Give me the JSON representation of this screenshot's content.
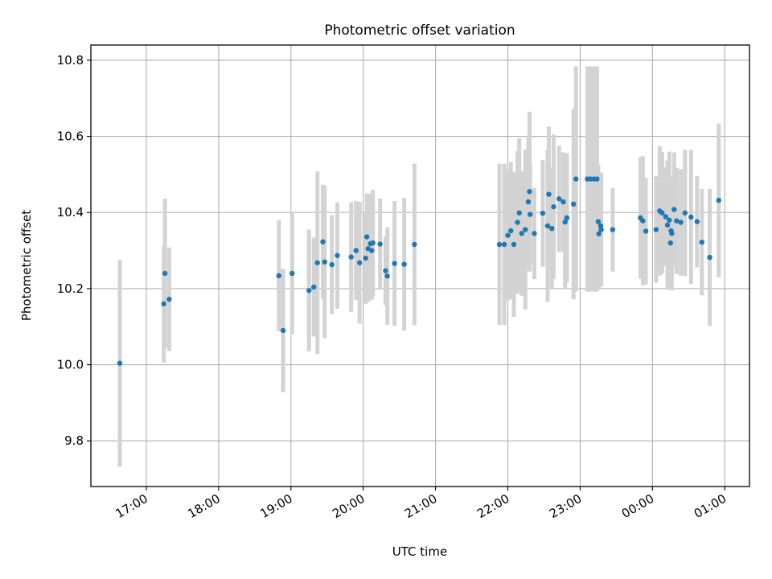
{
  "chart_data": {
    "type": "scatter",
    "title": "Photometric offset variation",
    "xlabel": "UTC time",
    "ylabel": "Photometric offset",
    "x_unit": "hours (UTC); 24 = 00:00, 25 = 01:00",
    "xlim": [
      16.2333,
      25.3417
    ],
    "ylim": [
      9.68,
      10.84
    ],
    "x_ticks": [
      17,
      18,
      19,
      20,
      21,
      22,
      23,
      24,
      25
    ],
    "x_tick_labels": [
      "17:00",
      "18:00",
      "19:00",
      "20:00",
      "21:00",
      "22:00",
      "23:00",
      "00:00",
      "01:00"
    ],
    "y_ticks": [
      9.8,
      10.0,
      10.2,
      10.4,
      10.6,
      10.8
    ],
    "y_tick_labels": [
      "9.8",
      "10.0",
      "10.2",
      "10.4",
      "10.6",
      "10.8"
    ],
    "grid": true,
    "colors": {
      "marker": "#1f77b4",
      "errorbar": "#d3d3d3",
      "grid": "#b0b0b0"
    },
    "series": [
      {
        "points": [
          [
            16.6333,
            10.004,
            0.272
          ],
          [
            17.2417,
            10.16,
            0.154
          ],
          [
            17.2583,
            10.24,
            0.196
          ],
          [
            17.3167,
            10.172,
            0.136
          ],
          [
            18.8333,
            10.234,
            0.146
          ],
          [
            18.8917,
            10.09,
            0.162
          ],
          [
            19.0167,
            10.24,
            0.16
          ],
          [
            19.25,
            10.195,
            0.16
          ],
          [
            19.3167,
            10.204,
            0.13
          ],
          [
            19.3667,
            10.268,
            0.24
          ],
          [
            19.4417,
            10.323,
            0.15
          ],
          [
            19.4667,
            10.27,
            0.2
          ],
          [
            19.5667,
            10.263,
            0.13
          ],
          [
            19.6417,
            10.287,
            0.14
          ],
          [
            19.8333,
            10.283,
            0.144
          ],
          [
            19.9,
            10.3,
            0.13
          ],
          [
            19.95,
            10.268,
            0.16
          ],
          [
            20.0333,
            10.28,
            0.12
          ],
          [
            20.05,
            10.336,
            0.114
          ],
          [
            20.0667,
            10.305,
            0.14
          ],
          [
            20.1,
            10.318,
            0.132
          ],
          [
            20.1167,
            10.3,
            0.13
          ],
          [
            20.1333,
            10.32,
            0.14
          ],
          [
            20.2333,
            10.317,
            0.12
          ],
          [
            20.3083,
            10.247,
            0.09
          ],
          [
            20.3333,
            10.233,
            0.128
          ],
          [
            20.4333,
            10.266,
            0.164
          ],
          [
            20.5667,
            10.264,
            0.174
          ],
          [
            20.7083,
            10.316,
            0.212
          ],
          [
            21.8833,
            10.316,
            0.212
          ],
          [
            21.95,
            10.316,
            0.212
          ],
          [
            22.0,
            10.34,
            0.17
          ],
          [
            22.0417,
            10.352,
            0.18
          ],
          [
            22.0833,
            10.316,
            0.19
          ],
          [
            22.1333,
            10.374,
            0.188
          ],
          [
            22.1583,
            10.399,
            0.196
          ],
          [
            22.1917,
            10.345,
            0.164
          ],
          [
            22.2417,
            10.355,
            0.21
          ],
          [
            22.2833,
            10.428,
            0.174
          ],
          [
            22.3,
            10.455,
            0.21
          ],
          [
            22.3083,
            10.395,
            0.132
          ],
          [
            22.3667,
            10.345,
            0.12
          ],
          [
            22.4833,
            10.398,
            0.14
          ],
          [
            22.55,
            10.365,
            0.2
          ],
          [
            22.5667,
            10.448,
            0.178
          ],
          [
            22.6083,
            10.358,
            0.16
          ],
          [
            22.6333,
            10.415,
            0.19
          ],
          [
            22.7083,
            10.436,
            0.14
          ],
          [
            22.7667,
            10.428,
            0.13
          ],
          [
            22.7917,
            10.375,
            0.176
          ],
          [
            22.8167,
            10.386,
            0.17
          ],
          [
            22.9083,
            10.422,
            0.25
          ],
          [
            22.9417,
            10.488,
            0.296
          ],
          [
            23.1,
            10.488,
            0.296
          ],
          [
            23.1417,
            10.488,
            0.296
          ],
          [
            23.1917,
            10.488,
            0.296
          ],
          [
            23.2333,
            10.488,
            0.296
          ],
          [
            23.25,
            10.376,
            0.15
          ],
          [
            23.2583,
            10.344,
            0.144
          ],
          [
            23.2833,
            10.365,
            0.14
          ],
          [
            23.2917,
            10.355,
            0.15
          ],
          [
            23.45,
            10.355,
            0.11
          ],
          [
            23.8333,
            10.386,
            0.16
          ],
          [
            23.8667,
            10.378,
            0.17
          ],
          [
            23.9083,
            10.351,
            0.14
          ],
          [
            24.05,
            10.355,
            0.14
          ],
          [
            24.1,
            10.404,
            0.17
          ],
          [
            24.1333,
            10.399,
            0.16
          ],
          [
            24.1833,
            10.389,
            0.13
          ],
          [
            24.2083,
            10.367,
            0.17
          ],
          [
            24.2333,
            10.38,
            0.18
          ],
          [
            24.25,
            10.32,
            0.12
          ],
          [
            24.2583,
            10.352,
            0.13
          ],
          [
            24.2667,
            10.345,
            0.15
          ],
          [
            24.3,
            10.408,
            0.15
          ],
          [
            24.3333,
            10.378,
            0.14
          ],
          [
            24.3917,
            10.374,
            0.14
          ],
          [
            24.45,
            10.399,
            0.166
          ],
          [
            24.5333,
            10.388,
            0.176
          ],
          [
            24.6167,
            10.376,
            0.12
          ],
          [
            24.6833,
            10.322,
            0.14
          ],
          [
            24.7917,
            10.282,
            0.18
          ],
          [
            24.9167,
            10.432,
            0.202
          ]
        ]
      }
    ]
  }
}
